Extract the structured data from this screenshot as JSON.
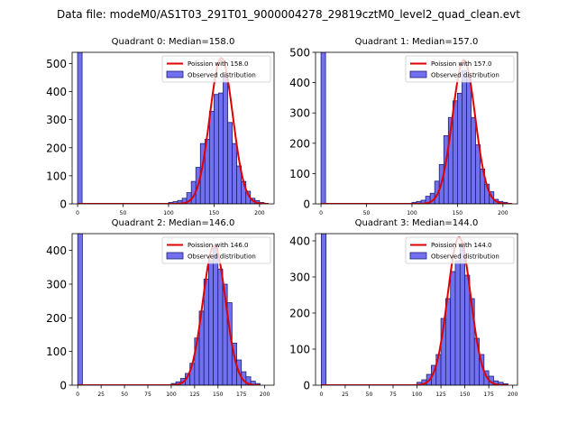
{
  "figure": {
    "suptitle": "Data file: modeM0/AS1T03_291T01_9000004278_29819cztM0_level2_quad_clean.evt",
    "colors": {
      "bar_fill": "#7070f0",
      "bar_edge": "#202070",
      "line": "#e00000",
      "legend_border": "#cccccc"
    }
  },
  "chart_data": [
    {
      "type": "bar",
      "title": "Quadrant 0: Median=158.0",
      "legend": [
        "Poission with 158.0",
        "Observed distribution"
      ],
      "legend_loc": "top-right",
      "xlim": [
        -6,
        216
      ],
      "ylim": [
        0,
        540
      ],
      "xticks": [
        0,
        50,
        100,
        150,
        200
      ],
      "yticks": [
        0,
        100,
        200,
        300,
        400,
        500
      ],
      "bin_width": 5,
      "bins": [
        {
          "x": 0,
          "h": 540
        },
        {
          "x": 100,
          "h": 5
        },
        {
          "x": 105,
          "h": 8
        },
        {
          "x": 110,
          "h": 12
        },
        {
          "x": 115,
          "h": 20
        },
        {
          "x": 120,
          "h": 40
        },
        {
          "x": 125,
          "h": 80
        },
        {
          "x": 130,
          "h": 130
        },
        {
          "x": 135,
          "h": 215
        },
        {
          "x": 140,
          "h": 230
        },
        {
          "x": 145,
          "h": 330
        },
        {
          "x": 150,
          "h": 390
        },
        {
          "x": 155,
          "h": 395
        },
        {
          "x": 160,
          "h": 455
        },
        {
          "x": 165,
          "h": 290
        },
        {
          "x": 170,
          "h": 215
        },
        {
          "x": 175,
          "h": 135
        },
        {
          "x": 180,
          "h": 80
        },
        {
          "x": 185,
          "h": 45
        },
        {
          "x": 190,
          "h": 20
        },
        {
          "x": 195,
          "h": 12
        },
        {
          "x": 200,
          "h": 5
        }
      ],
      "poisson": {
        "mu": 158.0,
        "amp": 520,
        "sigma": 12.6,
        "x_range": [
          0,
          210
        ]
      }
    },
    {
      "type": "bar",
      "title": "Quadrant 1: Median=157.0",
      "legend": [
        "Poission with 157.0",
        "Observed distribution"
      ],
      "legend_loc": "top-right",
      "xlim": [
        -6,
        216
      ],
      "ylim": [
        0,
        500
      ],
      "xticks": [
        0,
        50,
        100,
        150,
        200
      ],
      "yticks": [
        0,
        100,
        200,
        300,
        400,
        500
      ],
      "bin_width": 5,
      "bins": [
        {
          "x": 0,
          "h": 500
        },
        {
          "x": 100,
          "h": 5
        },
        {
          "x": 105,
          "h": 8
        },
        {
          "x": 110,
          "h": 12
        },
        {
          "x": 115,
          "h": 25
        },
        {
          "x": 120,
          "h": 35
        },
        {
          "x": 125,
          "h": 75
        },
        {
          "x": 130,
          "h": 130
        },
        {
          "x": 135,
          "h": 225
        },
        {
          "x": 140,
          "h": 285
        },
        {
          "x": 145,
          "h": 340
        },
        {
          "x": 150,
          "h": 365
        },
        {
          "x": 155,
          "h": 440
        },
        {
          "x": 160,
          "h": 420
        },
        {
          "x": 165,
          "h": 285
        },
        {
          "x": 170,
          "h": 195
        },
        {
          "x": 175,
          "h": 115
        },
        {
          "x": 180,
          "h": 65
        },
        {
          "x": 185,
          "h": 40
        },
        {
          "x": 190,
          "h": 15
        },
        {
          "x": 195,
          "h": 8
        },
        {
          "x": 200,
          "h": 5
        }
      ],
      "poisson": {
        "mu": 157.0,
        "amp": 475,
        "sigma": 12.5,
        "x_range": [
          0,
          210
        ]
      }
    },
    {
      "type": "bar",
      "title": "Quadrant 2: Median=146.0",
      "legend": [
        "Poission with 146.0",
        "Observed distribution"
      ],
      "legend_loc": "top-right",
      "xlim": [
        -6,
        210
      ],
      "ylim": [
        0,
        450
      ],
      "xticks": [
        0,
        25,
        50,
        75,
        100,
        125,
        150,
        175,
        200
      ],
      "yticks": [
        0,
        100,
        200,
        300,
        400
      ],
      "bin_width": 5,
      "bins": [
        {
          "x": 0,
          "h": 450
        },
        {
          "x": 100,
          "h": 5
        },
        {
          "x": 105,
          "h": 10
        },
        {
          "x": 110,
          "h": 20
        },
        {
          "x": 115,
          "h": 35
        },
        {
          "x": 120,
          "h": 65
        },
        {
          "x": 125,
          "h": 140
        },
        {
          "x": 130,
          "h": 220
        },
        {
          "x": 135,
          "h": 315
        },
        {
          "x": 140,
          "h": 370
        },
        {
          "x": 145,
          "h": 410
        },
        {
          "x": 150,
          "h": 345
        },
        {
          "x": 155,
          "h": 300
        },
        {
          "x": 160,
          "h": 245
        },
        {
          "x": 165,
          "h": 125
        },
        {
          "x": 170,
          "h": 75
        },
        {
          "x": 175,
          "h": 40
        },
        {
          "x": 180,
          "h": 25
        },
        {
          "x": 185,
          "h": 12
        },
        {
          "x": 190,
          "h": 5
        }
      ],
      "poisson": {
        "mu": 146.0,
        "amp": 415,
        "sigma": 12.1,
        "x_range": [
          0,
          195
        ]
      }
    },
    {
      "type": "bar",
      "title": "Quadrant 3: Median=144.0",
      "legend": [
        "Poission with 144.0",
        "Observed distribution"
      ],
      "legend_loc": "top-right",
      "xlim": [
        -6,
        205
      ],
      "ylim": [
        0,
        420
      ],
      "xticks": [
        0,
        25,
        50,
        75,
        100,
        125,
        150,
        175,
        200
      ],
      "yticks": [
        0,
        100,
        200,
        300,
        400
      ],
      "bin_width": 5,
      "bins": [
        {
          "x": 0,
          "h": 420
        },
        {
          "x": 100,
          "h": 8
        },
        {
          "x": 105,
          "h": 15
        },
        {
          "x": 110,
          "h": 30
        },
        {
          "x": 115,
          "h": 55
        },
        {
          "x": 120,
          "h": 85
        },
        {
          "x": 125,
          "h": 185
        },
        {
          "x": 130,
          "h": 240
        },
        {
          "x": 135,
          "h": 315
        },
        {
          "x": 140,
          "h": 345
        },
        {
          "x": 145,
          "h": 385
        },
        {
          "x": 150,
          "h": 305
        },
        {
          "x": 155,
          "h": 240
        },
        {
          "x": 160,
          "h": 130
        },
        {
          "x": 165,
          "h": 85
        },
        {
          "x": 170,
          "h": 40
        },
        {
          "x": 175,
          "h": 25
        },
        {
          "x": 180,
          "h": 12
        },
        {
          "x": 185,
          "h": 8
        },
        {
          "x": 190,
          "h": 4
        }
      ],
      "poisson": {
        "mu": 144.0,
        "amp": 410,
        "sigma": 12.0,
        "x_range": [
          0,
          195
        ]
      }
    }
  ]
}
